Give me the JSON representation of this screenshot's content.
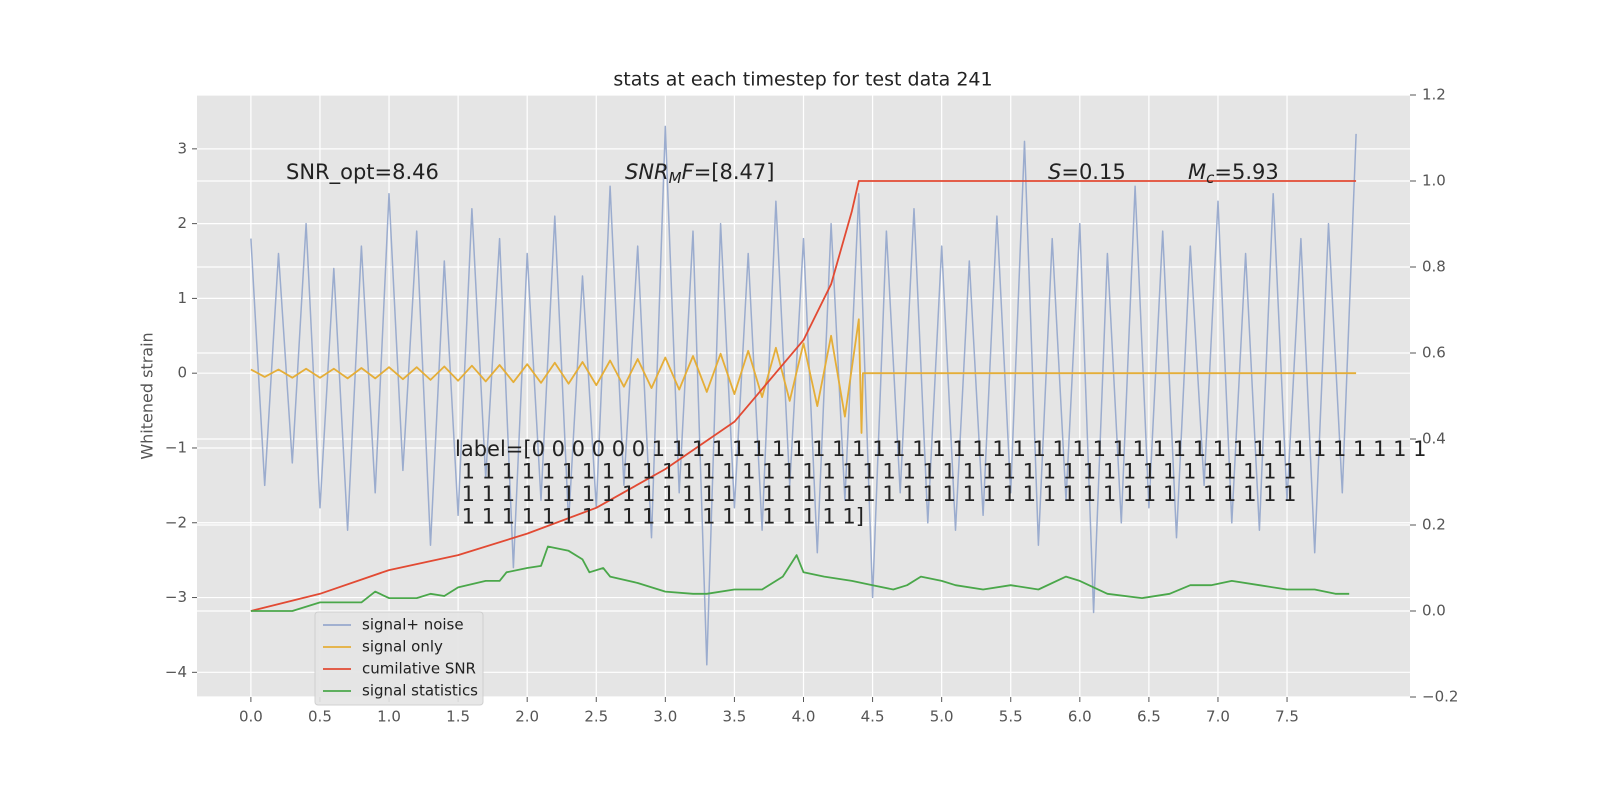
{
  "chart_data": {
    "type": "line",
    "title": "stats at each timestep for test data 241",
    "ylabel": "Whitened strain",
    "xlim": [
      -0.39,
      8.39
    ],
    "ylim": [
      -4.33,
      3.72
    ],
    "y2lim": [
      -0.2,
      1.2
    ],
    "xticks": [
      {
        "value": 0,
        "label": "0.0"
      },
      0.5,
      {
        "value": 1,
        "label": "1.0"
      },
      1.5,
      {
        "value": 2,
        "label": "2.0"
      },
      2.5,
      {
        "value": 3,
        "label": "3.0"
      },
      3.5,
      {
        "value": 4,
        "label": "4.0"
      },
      4.5,
      {
        "value": 5,
        "label": "5.0"
      },
      5.5,
      {
        "value": 6,
        "label": "6.0"
      },
      6.5,
      {
        "value": 7,
        "label": "7.0"
      },
      7.5
    ],
    "yticks": [
      {
        "value": -4,
        "label": "−4"
      },
      {
        "value": -3,
        "label": "−3"
      },
      {
        "value": -2,
        "label": "−2"
      },
      {
        "value": -1,
        "label": "−1"
      },
      0,
      1,
      2,
      3
    ],
    "y2ticks": [
      {
        "value": -0.2,
        "label": "−0.2"
      },
      {
        "value": 0,
        "label": "0.0"
      },
      0.2,
      0.4,
      0.6,
      0.8,
      {
        "value": 1,
        "label": "1.0"
      },
      1.2
    ],
    "grid": true,
    "legend": "lower left",
    "series": [
      {
        "name": "signal+ noise",
        "color": "#97a9cc",
        "x": [
          0,
          0.1,
          0.2,
          0.3,
          0.4,
          0.5,
          0.6,
          0.7,
          0.8,
          0.9,
          1,
          1.1,
          1.2,
          1.3,
          1.4,
          1.5,
          1.6,
          1.7,
          1.8,
          1.9,
          2,
          2.1,
          2.2,
          2.3,
          2.4,
          2.5,
          2.6,
          2.7,
          2.8,
          2.9,
          3,
          3.1,
          3.2,
          3.3,
          3.4,
          3.5,
          3.6,
          3.7,
          3.8,
          3.9,
          4,
          4.1,
          4.2,
          4.3,
          4.4,
          4.5,
          4.6,
          4.7,
          4.8,
          4.9,
          5,
          5.1,
          5.2,
          5.3,
          5.4,
          5.5,
          5.6,
          5.7,
          5.8,
          5.9,
          6,
          6.1,
          6.2,
          6.3,
          6.4,
          6.5,
          6.6,
          6.7,
          6.8,
          6.9,
          7,
          7.1,
          7.2,
          7.3,
          7.4,
          7.5,
          7.6,
          7.7,
          7.8,
          7.9,
          8
        ],
        "values": [
          1.8,
          -1.5,
          1.6,
          -1.2,
          2.0,
          -1.8,
          1.4,
          -2.1,
          1.7,
          -1.6,
          2.4,
          -1.3,
          1.9,
          -2.3,
          1.5,
          -1.9,
          2.2,
          -1.4,
          1.8,
          -2.6,
          1.6,
          -1.7,
          2.1,
          -2.0,
          1.3,
          -1.8,
          2.5,
          -1.5,
          1.7,
          -2.2,
          3.3,
          -1.6,
          1.9,
          -3.9,
          2.0,
          -1.8,
          1.6,
          -2.1,
          2.3,
          -1.5,
          1.8,
          -2.4,
          2.0,
          -1.7,
          2.4,
          -3.0,
          1.9,
          -1.6,
          2.2,
          -2.0,
          1.7,
          -2.1,
          1.5,
          -1.9,
          2.1,
          -1.6,
          3.1,
          -2.3,
          1.8,
          -1.7,
          2.0,
          -3.2,
          1.6,
          -2.0,
          2.5,
          -1.8,
          1.9,
          -2.2,
          1.7,
          -1.5,
          2.3,
          -2.0,
          1.6,
          -2.1,
          2.4,
          -1.7,
          1.8,
          -2.4,
          2.0,
          -1.6,
          3.2
        ]
      },
      {
        "name": "signal only",
        "color": "#e5ae38",
        "x": [
          0,
          0.1,
          0.2,
          0.3,
          0.4,
          0.5,
          0.6,
          0.7,
          0.8,
          0.9,
          1,
          1.1,
          1.2,
          1.3,
          1.4,
          1.5,
          1.6,
          1.7,
          1.8,
          1.9,
          2,
          2.1,
          2.2,
          2.3,
          2.4,
          2.5,
          2.6,
          2.7,
          2.8,
          2.9,
          3,
          3.1,
          3.2,
          3.3,
          3.4,
          3.5,
          3.6,
          3.7,
          3.8,
          3.9,
          4,
          4.1,
          4.2,
          4.3,
          4.4,
          4.42,
          4.43,
          8
        ],
        "values": [
          0.05,
          -0.05,
          0.05,
          -0.06,
          0.06,
          -0.06,
          0.06,
          -0.07,
          0.07,
          -0.07,
          0.08,
          -0.08,
          0.08,
          -0.09,
          0.09,
          -0.1,
          0.1,
          -0.11,
          0.11,
          -0.12,
          0.12,
          -0.13,
          0.14,
          -0.14,
          0.15,
          -0.16,
          0.17,
          -0.18,
          0.19,
          -0.2,
          0.21,
          -0.22,
          0.23,
          -0.25,
          0.26,
          -0.28,
          0.3,
          -0.32,
          0.34,
          -0.37,
          0.4,
          -0.44,
          0.5,
          -0.58,
          0.72,
          -0.8,
          0,
          0
        ]
      },
      {
        "name": "cumilative SNR",
        "color": "#e24a33",
        "axis": "y2",
        "x": [
          0,
          0.5,
          1,
          1.5,
          2,
          2.5,
          3,
          3.5,
          4,
          4.2,
          4.35,
          4.4,
          8
        ],
        "values": [
          0,
          0.04,
          0.095,
          0.13,
          0.18,
          0.24,
          0.33,
          0.44,
          0.63,
          0.76,
          0.93,
          1,
          1
        ]
      },
      {
        "name": "signal statistics",
        "color": "#4aa74a",
        "axis": "y2",
        "x": [
          0,
          0.3,
          0.5,
          0.8,
          0.9,
          1,
          1.2,
          1.3,
          1.4,
          1.5,
          1.7,
          1.8,
          1.85,
          2,
          2.1,
          2.15,
          2.3,
          2.4,
          2.45,
          2.55,
          2.6,
          2.8,
          3,
          3.2,
          3.3,
          3.5,
          3.7,
          3.85,
          3.95,
          4,
          4.15,
          4.35,
          4.5,
          4.65,
          4.75,
          4.85,
          5,
          5.1,
          5.3,
          5.5,
          5.7,
          5.9,
          6,
          6.2,
          6.45,
          6.65,
          6.8,
          6.95,
          7.1,
          7.3,
          7.5,
          7.7,
          7.85,
          7.95
        ],
        "values": [
          0,
          0,
          0.02,
          0.02,
          0.045,
          0.03,
          0.03,
          0.04,
          0.035,
          0.055,
          0.07,
          0.07,
          0.09,
          0.1,
          0.105,
          0.15,
          0.14,
          0.12,
          0.09,
          0.1,
          0.08,
          0.065,
          0.045,
          0.04,
          0.04,
          0.05,
          0.05,
          0.08,
          0.13,
          0.09,
          0.08,
          0.07,
          0.06,
          0.05,
          0.06,
          0.08,
          0.07,
          0.06,
          0.05,
          0.06,
          0.05,
          0.08,
          0.07,
          0.04,
          0.03,
          0.04,
          0.06,
          0.06,
          0.07,
          0.06,
          0.05,
          0.05,
          0.04,
          0.04
        ]
      }
    ],
    "annotations": [
      {
        "segments": [
          {
            "text": "SNR_opt=8.46",
            "style": "normal"
          }
        ]
      },
      {
        "segments": [
          {
            "text": "SNR",
            "style": "italic"
          },
          {
            "text": "M",
            "style": "sub"
          },
          {
            "text": "F",
            "style": "italic"
          },
          {
            "text": "=[8.47]",
            "style": "normal"
          }
        ]
      },
      {
        "segments": [
          {
            "text": "S",
            "style": "italic"
          },
          {
            "text": "=0.15",
            "style": "normal"
          }
        ]
      },
      {
        "segments": [
          {
            "text": "M",
            "style": "italic"
          },
          {
            "text": "c",
            "style": "sub"
          },
          {
            "text": "=5.93",
            "style": "normal"
          }
        ]
      }
    ],
    "label_text": [
      "label=[0 0 0 0 0 0 1 1 1 1 1 1 1 1 1 1 1 1 1 1 1 1 1 1 1 1 1 1 1 1 1 1 1 1 1 1 1 1 1 1 1 1 1 1 1",
      " 1 1 1 1 1 1 1 1 1 1 1 1 1 1 1 1 1 1 1 1 1 1 1 1 1 1 1 1 1 1 1 1 1 1 1 1 1 1 1 1 1 1",
      " 1 1 1 1 1 1 1 1 1 1 1 1 1 1 1 1 1 1 1 1 1 1 1 1 1 1 1 1 1 1 1 1 1 1 1 1 1 1 1 1 1 1",
      " 1 1 1 1 1 1 1 1 1 1 1 1 1 1 1 1 1 1 1 1]"
    ]
  }
}
